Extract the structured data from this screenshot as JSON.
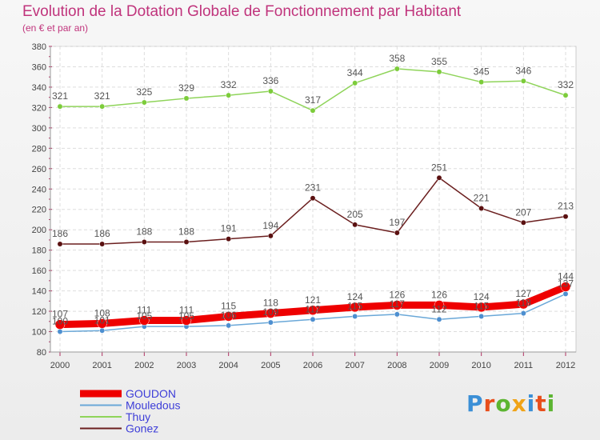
{
  "title": "Evolution de la Dotation Globale de Fonctionnement par Habitant",
  "subtitle": "(en € et par an)",
  "logo": {
    "text": "Proxiti",
    "colors": [
      "#3b8fd6",
      "#e84e1b",
      "#5cb531",
      "#f0a317",
      "#3b8fd6",
      "#e84e1b",
      "#5cb531"
    ]
  },
  "chart_data": {
    "type": "line",
    "title": "Evolution de la Dotation Globale de Fonctionnement par Habitant",
    "subtitle": "(en € et par an)",
    "x": [
      "2000",
      "2001",
      "2002",
      "2003",
      "2004",
      "2005",
      "2006",
      "2007",
      "2008",
      "2009",
      "2010",
      "2011",
      "2012"
    ],
    "ylim": [
      80,
      380
    ],
    "yticks": [
      80,
      100,
      120,
      140,
      160,
      180,
      200,
      220,
      240,
      260,
      280,
      300,
      320,
      340,
      360,
      380
    ],
    "grid": true,
    "legend_position": "bottom-left",
    "series": [
      {
        "name": "GOUDON",
        "color": "#ee0000",
        "values": [
          107,
          108,
          111,
          111,
          115,
          118,
          121,
          124,
          126,
          126,
          124,
          127,
          144
        ],
        "labels": [
          "107",
          "108",
          "111",
          "111",
          "115",
          "118",
          "121",
          "124",
          "126",
          "126",
          "124",
          "127",
          "144"
        ]
      },
      {
        "name": "Mouledous",
        "color": "#6aa8d8",
        "values": [
          100,
          101,
          105,
          105,
          106,
          109,
          112,
          115,
          117,
          112,
          115,
          118,
          137
        ],
        "labels": [
          "100",
          "101",
          "105",
          "105",
          "106",
          "109",
          "112",
          "115",
          "117",
          "112",
          "115",
          "118",
          "137"
        ]
      },
      {
        "name": "Thuy",
        "color": "#8fd45a",
        "values": [
          321,
          321,
          325,
          329,
          332,
          336,
          317,
          344,
          358,
          355,
          345,
          346,
          332
        ],
        "labels": [
          "321",
          "321",
          "325",
          "329",
          "332",
          "336",
          "317",
          "344",
          "358",
          "355",
          "345",
          "346",
          "332"
        ]
      },
      {
        "name": "Gonez",
        "color": "#6b1f1f",
        "values": [
          186,
          186,
          188,
          188,
          191,
          194,
          231,
          205,
          197,
          251,
          221,
          207,
          213
        ],
        "labels": [
          "186",
          "186",
          "188",
          "188",
          "191",
          "194",
          "231",
          "205",
          "197",
          "251",
          "221",
          "207",
          "213"
        ]
      }
    ],
    "legend": [
      "GOUDON",
      "Mouledous",
      "Thuy",
      "Gonez"
    ]
  }
}
